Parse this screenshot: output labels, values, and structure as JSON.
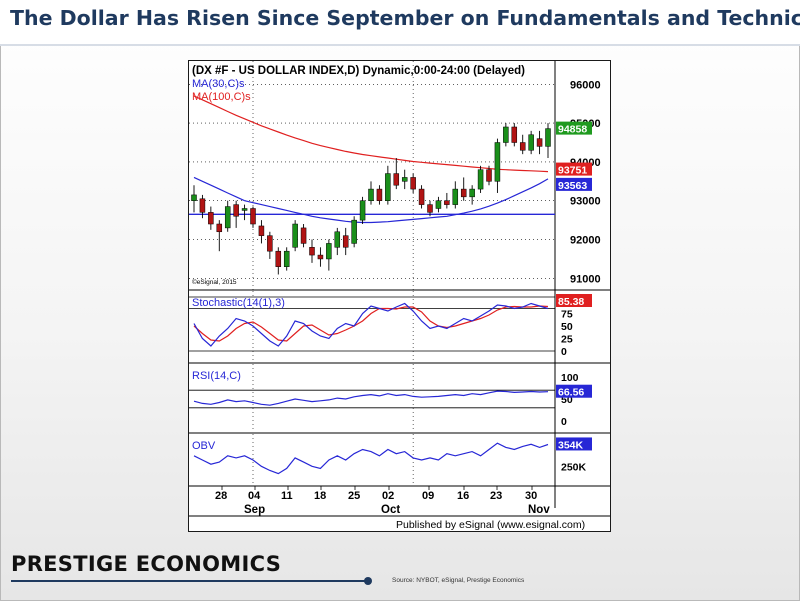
{
  "slide": {
    "title": "The Dollar Has Risen Since September on Fundamentals and Technicals",
    "brand": "PRESTIGE ECONOMICS",
    "source": "Source: NYBOT, eSignal, Prestige Economics"
  },
  "chart_data": {
    "type": "candlestick",
    "header": "(DX #F - US DOLLAR INDEX,D) Dynamic,0:00-24:00 (Delayed)",
    "publisher": "Published by eSignal (www.esignal.com)",
    "copyright": "©eSignal, 2015",
    "colors": {
      "up": "#1a8f1a",
      "down": "#b11414",
      "ma30": "#2727d6",
      "ma100": "#e02020",
      "stoch_k": "#2727d6",
      "stoch_d": "#e02020",
      "rsi": "#2727d6",
      "obv": "#2727d6",
      "support": "#2727d6"
    },
    "x_ticks": [
      "28",
      "04",
      "11",
      "18",
      "25",
      "02",
      "09",
      "16",
      "23",
      "30",
      "Nov"
    ],
    "month_labels": [
      "Sep",
      "Oct",
      "Nov"
    ],
    "price_panel": {
      "y_ticks": [
        "96000",
        "95000",
        "94000",
        "93000",
        "92000",
        "91000"
      ],
      "ylim": [
        90700,
        96600
      ],
      "last_value_label": "94858",
      "ma100_label": "93751",
      "ma30_label": "93563",
      "support_level": 92650,
      "candles": [
        {
          "o": 93000,
          "h": 93400,
          "l": 92700,
          "c": 93150
        },
        {
          "o": 93050,
          "h": 93150,
          "l": 92550,
          "c": 92700
        },
        {
          "o": 92700,
          "h": 92850,
          "l": 92250,
          "c": 92400
        },
        {
          "o": 92400,
          "h": 92500,
          "l": 91700,
          "c": 92200
        },
        {
          "o": 92300,
          "h": 93000,
          "l": 92200,
          "c": 92850
        },
        {
          "o": 92900,
          "h": 93000,
          "l": 92300,
          "c": 92600
        },
        {
          "o": 92750,
          "h": 92900,
          "l": 92500,
          "c": 92800
        },
        {
          "o": 92800,
          "h": 92850,
          "l": 92300,
          "c": 92400
        },
        {
          "o": 92350,
          "h": 92500,
          "l": 91900,
          "c": 92100
        },
        {
          "o": 92100,
          "h": 92200,
          "l": 91500,
          "c": 91700
        },
        {
          "o": 91700,
          "h": 91800,
          "l": 91100,
          "c": 91300
        },
        {
          "o": 91300,
          "h": 91800,
          "l": 91200,
          "c": 91700
        },
        {
          "o": 91800,
          "h": 92500,
          "l": 91700,
          "c": 92400
        },
        {
          "o": 92300,
          "h": 92400,
          "l": 91800,
          "c": 91900
        },
        {
          "o": 91800,
          "h": 92000,
          "l": 91400,
          "c": 91600
        },
        {
          "o": 91600,
          "h": 91800,
          "l": 91300,
          "c": 91500
        },
        {
          "o": 91500,
          "h": 92000,
          "l": 91200,
          "c": 91900
        },
        {
          "o": 91800,
          "h": 92300,
          "l": 91600,
          "c": 92200
        },
        {
          "o": 92100,
          "h": 92300,
          "l": 91600,
          "c": 91800
        },
        {
          "o": 91900,
          "h": 92600,
          "l": 91800,
          "c": 92500
        },
        {
          "o": 92500,
          "h": 93100,
          "l": 92400,
          "c": 93000
        },
        {
          "o": 93000,
          "h": 93500,
          "l": 92900,
          "c": 93300
        },
        {
          "o": 93300,
          "h": 93400,
          "l": 92900,
          "c": 93000
        },
        {
          "o": 93000,
          "h": 93900,
          "l": 92900,
          "c": 93700
        },
        {
          "o": 93700,
          "h": 94100,
          "l": 93300,
          "c": 93400
        },
        {
          "o": 93500,
          "h": 93800,
          "l": 93300,
          "c": 93600
        },
        {
          "o": 93600,
          "h": 93700,
          "l": 93200,
          "c": 93300
        },
        {
          "o": 93300,
          "h": 93400,
          "l": 92800,
          "c": 92900
        },
        {
          "o": 92900,
          "h": 93000,
          "l": 92600,
          "c": 92700
        },
        {
          "o": 92800,
          "h": 93100,
          "l": 92700,
          "c": 93000
        },
        {
          "o": 93000,
          "h": 93200,
          "l": 92800,
          "c": 92900
        },
        {
          "o": 92900,
          "h": 93500,
          "l": 92800,
          "c": 93300
        },
        {
          "o": 93300,
          "h": 93600,
          "l": 93000,
          "c": 93100
        },
        {
          "o": 93100,
          "h": 93400,
          "l": 92900,
          "c": 93300
        },
        {
          "o": 93300,
          "h": 93900,
          "l": 93200,
          "c": 93800
        },
        {
          "o": 93800,
          "h": 93900,
          "l": 93400,
          "c": 93500
        },
        {
          "o": 93500,
          "h": 94600,
          "l": 93200,
          "c": 94500
        },
        {
          "o": 94500,
          "h": 95000,
          "l": 94400,
          "c": 94900
        },
        {
          "o": 94900,
          "h": 95000,
          "l": 94400,
          "c": 94500
        },
        {
          "o": 94500,
          "h": 94700,
          "l": 94200,
          "c": 94300
        },
        {
          "o": 94300,
          "h": 94800,
          "l": 94200,
          "c": 94700
        },
        {
          "o": 94600,
          "h": 94800,
          "l": 94200,
          "c": 94400
        },
        {
          "o": 94400,
          "h": 95000,
          "l": 94100,
          "c": 94858
        }
      ],
      "ma30": [
        93600,
        93500,
        93400,
        93300,
        93200,
        93100,
        93000,
        92950,
        92900,
        92850,
        92800,
        92750,
        92700,
        92650,
        92600,
        92560,
        92530,
        92500,
        92470,
        92450,
        92440,
        92440,
        92450,
        92460,
        92480,
        92500,
        92520,
        92540,
        92560,
        92580,
        92600,
        92640,
        92680,
        92730,
        92790,
        92860,
        92940,
        93030,
        93130,
        93230,
        93330,
        93440,
        93563
      ],
      "ma100": [
        95700,
        95600,
        95500,
        95400,
        95300,
        95200,
        95110,
        95020,
        94930,
        94850,
        94770,
        94690,
        94620,
        94550,
        94480,
        94420,
        94370,
        94320,
        94270,
        94230,
        94190,
        94160,
        94130,
        94100,
        94070,
        94040,
        94010,
        93990,
        93970,
        93950,
        93930,
        93910,
        93890,
        93870,
        93850,
        93830,
        93810,
        93800,
        93790,
        93780,
        93770,
        93760,
        93751
      ]
    },
    "stochastic_panel": {
      "label": "Stochastic(14(1),3)",
      "last_value_label": "85.38",
      "y_ticks": [
        "75",
        "50",
        "25",
        "0"
      ],
      "ylim": [
        0,
        100
      ],
      "k": [
        55,
        25,
        10,
        30,
        45,
        65,
        60,
        50,
        35,
        20,
        10,
        30,
        60,
        55,
        40,
        30,
        25,
        45,
        55,
        50,
        75,
        90,
        85,
        80,
        88,
        95,
        80,
        60,
        45,
        50,
        45,
        55,
        65,
        60,
        70,
        80,
        92,
        90,
        85,
        88,
        95,
        90,
        85
      ],
      "d": [
        50,
        35,
        22,
        20,
        30,
        45,
        55,
        58,
        48,
        35,
        22,
        20,
        35,
        50,
        52,
        42,
        32,
        35,
        42,
        50,
        60,
        75,
        85,
        85,
        84,
        88,
        88,
        78,
        60,
        50,
        47,
        50,
        55,
        60,
        65,
        72,
        82,
        88,
        89,
        88,
        88,
        90,
        89
      ]
    },
    "rsi_panel": {
      "label": "RSI(14,C)",
      "last_value_label": "66.56",
      "y_ticks": [
        "100",
        "50",
        "0"
      ],
      "ylim": [
        0,
        100
      ],
      "values": [
        45,
        40,
        38,
        42,
        48,
        44,
        46,
        42,
        38,
        36,
        40,
        45,
        50,
        47,
        44,
        46,
        48,
        52,
        50,
        55,
        58,
        60,
        57,
        62,
        58,
        60,
        56,
        54,
        55,
        56,
        58,
        60,
        58,
        62,
        60,
        64,
        68,
        67,
        65,
        66,
        67,
        66,
        66.56
      ]
    },
    "obv_panel": {
      "label": "OBV",
      "last_value_label": "354K",
      "y_ticks": [
        "250K"
      ],
      "ylim": [
        180,
        380
      ],
      "values": [
        300,
        280,
        260,
        270,
        300,
        290,
        300,
        280,
        250,
        230,
        215,
        240,
        290,
        270,
        250,
        240,
        280,
        300,
        280,
        310,
        330,
        320,
        300,
        330,
        310,
        320,
        290,
        280,
        290,
        280,
        310,
        300,
        310,
        320,
        300,
        330,
        360,
        340,
        330,
        345,
        355,
        340,
        354
      ]
    }
  }
}
